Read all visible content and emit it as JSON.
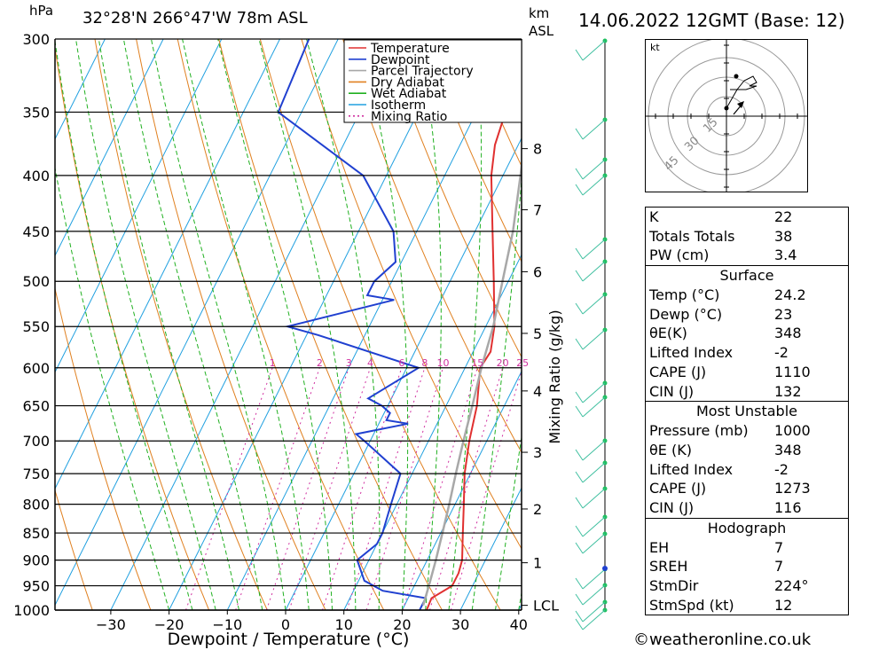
{
  "header": {
    "location": "32°28'N  266°47'W  78m  ASL",
    "pressure_unit": "hPa",
    "height_unit_km": "km",
    "height_unit_asl": "ASL",
    "datetime": "14.06.2022  12GMT  (Base: 12)"
  },
  "chart_data": {
    "type": "line",
    "title": "",
    "xlabel": "Dewpoint / Temperature (°C)",
    "ylabel": "hPa",
    "secondary_ylabel": "Mixing Ratio (g/kg)",
    "x_ticks": [
      -30,
      -20,
      -10,
      0,
      10,
      20,
      30,
      40
    ],
    "y_ticks": [
      300,
      350,
      400,
      450,
      500,
      550,
      600,
      650,
      700,
      750,
      800,
      850,
      900,
      950,
      1000
    ],
    "km_ticks": [
      {
        "km": "8",
        "p": 378
      },
      {
        "km": "7",
        "p": 430
      },
      {
        "km": "6",
        "p": 490
      },
      {
        "km": "5",
        "p": 558
      },
      {
        "km": "4",
        "p": 630
      },
      {
        "km": "3",
        "p": 717
      },
      {
        "km": "2",
        "p": 808
      },
      {
        "km": "1",
        "p": 905
      },
      {
        "km": "LCL",
        "p": 990
      }
    ],
    "mixing_ratio_labels": [
      "1",
      "2",
      "3",
      "4",
      "6",
      "8",
      "10",
      "15",
      "20",
      "25"
    ],
    "legend": [
      "Temperature",
      "Dewpoint",
      "Parcel Trajectory",
      "Dry Adiabat",
      "Wet Adiabat",
      "Isotherm",
      "Mixing Ratio"
    ],
    "legend_placement": "top-right",
    "colors": {
      "temperature": "#e03030",
      "dewpoint": "#2040d0",
      "parcel": "#a8a8a8",
      "dry_adiabat": "#e08020",
      "wet_adiabat": "#20b020",
      "isotherm": "#20a0e0",
      "mixing_ratio": "#d030a0"
    },
    "series": [
      {
        "name": "Temperature",
        "points": [
          [
            1000,
            24.2
          ],
          [
            975,
            24.0
          ],
          [
            950,
            26.5
          ],
          [
            925,
            26.5
          ],
          [
            900,
            26.0
          ],
          [
            850,
            23.8
          ],
          [
            800,
            21.5
          ],
          [
            750,
            19.0
          ],
          [
            700,
            17.0
          ],
          [
            650,
            15.3
          ],
          [
            600,
            12.6
          ],
          [
            580,
            13.0
          ],
          [
            550,
            11.5
          ],
          [
            500,
            7.5
          ],
          [
            450,
            3.0
          ],
          [
            400,
            -2.0
          ],
          [
            375,
            -4.0
          ],
          [
            350,
            -5.0
          ],
          [
            325,
            -7.0
          ],
          [
            300,
            -10.0
          ]
        ]
      },
      {
        "name": "Dewpoint",
        "points": [
          [
            1000,
            23.0
          ],
          [
            975,
            23.0
          ],
          [
            960,
            15.0
          ],
          [
            940,
            11.0
          ],
          [
            900,
            8.0
          ],
          [
            870,
            10.0
          ],
          [
            850,
            10.0
          ],
          [
            800,
            9.0
          ],
          [
            750,
            8.0
          ],
          [
            700,
            -1.0
          ],
          [
            690,
            -3.0
          ],
          [
            675,
            5.0
          ],
          [
            670,
            1.0
          ],
          [
            660,
            1.0
          ],
          [
            650,
            -1.0
          ],
          [
            640,
            -4.0
          ],
          [
            600,
            2.0
          ],
          [
            560,
            -18.0
          ],
          [
            550,
            -24.0
          ],
          [
            520,
            -8.0
          ],
          [
            515,
            -13.0
          ],
          [
            500,
            -13.0
          ],
          [
            480,
            -11.0
          ],
          [
            450,
            -14.0
          ],
          [
            400,
            -24.0
          ],
          [
            350,
            -44.0
          ],
          [
            300,
            -45.0
          ]
        ]
      },
      {
        "name": "Parcel Trajectory",
        "points": [
          [
            990,
            23.2
          ],
          [
            950,
            22.5
          ],
          [
            900,
            21.5
          ],
          [
            850,
            20.3
          ],
          [
            800,
            19.0
          ],
          [
            750,
            17.5
          ],
          [
            700,
            16.0
          ],
          [
            650,
            14.5
          ],
          [
            600,
            12.8
          ],
          [
            550,
            11.3
          ],
          [
            500,
            9.0
          ],
          [
            450,
            6.5
          ],
          [
            400,
            3.0
          ],
          [
            375,
            1.0
          ]
        ]
      }
    ]
  },
  "hodograph": {
    "unit": "kt",
    "rings": [
      "15",
      "30",
      "45"
    ]
  },
  "indices": {
    "k_label": "K",
    "k": "22",
    "tt_label": "Totals Totals",
    "tt": "38",
    "pw_label": "PW (cm)",
    "pw": "3.4"
  },
  "surface": {
    "title": "Surface",
    "temp_label": "Temp (°C)",
    "temp": "24.2",
    "dewp_label": "Dewp (°C)",
    "dewp": "23",
    "theta_label": "θE(K)",
    "theta": "348",
    "li_label": "Lifted Index",
    "li": "-2",
    "cape_label": "CAPE (J)",
    "cape": "1110",
    "cin_label": "CIN (J)",
    "cin": "132"
  },
  "most_unstable": {
    "title": "Most Unstable",
    "pressure_label": "Pressure (mb)",
    "pressure": "1000",
    "theta_label": "θE (K)",
    "theta": "348",
    "li_label": "Lifted Index",
    "li": "-2",
    "cape_label": "CAPE (J)",
    "cape": "1273",
    "cin_label": "CIN (J)",
    "cin": "116"
  },
  "hodograph_stats": {
    "title": "Hodograph",
    "eh_label": "EH",
    "eh": "7",
    "sreh_label": "SREH",
    "sreh": "7",
    "stmdir_label": "StmDir",
    "stmdir": "224°",
    "stmspd_label": "StmSpd (kt)",
    "stmspd": "12"
  },
  "footer": {
    "credit": "©weatheronline.co.uk"
  }
}
